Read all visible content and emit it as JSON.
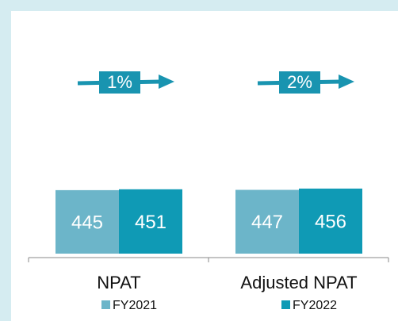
{
  "chart_data": {
    "type": "bar",
    "categories": [
      "NPAT",
      "Adjusted NPAT"
    ],
    "series": [
      {
        "name": "FY2021",
        "color": "#6cb5c9",
        "values": [
          445,
          447
        ]
      },
      {
        "name": "FY2022",
        "color": "#0f9ab5",
        "values": [
          451,
          456
        ]
      }
    ],
    "ylim": [
      0,
      1600
    ],
    "annotations": [
      "1%",
      "2%"
    ],
    "annotation_color": "#1994b0"
  }
}
